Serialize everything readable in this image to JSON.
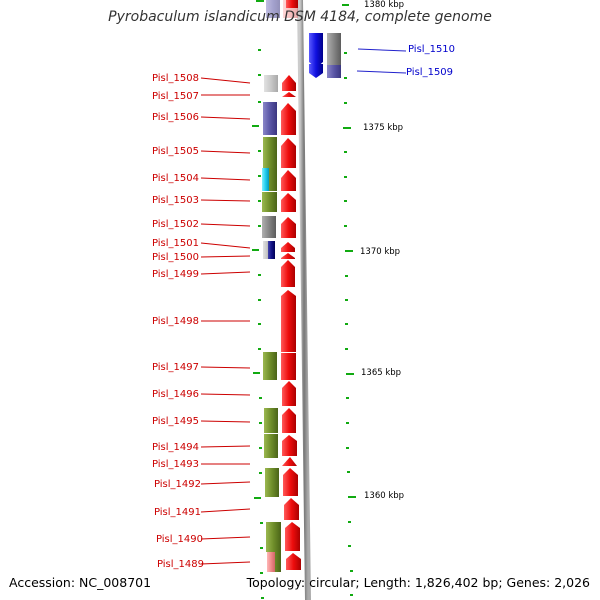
{
  "title": "Pyrobaculum islandicum DSM 4184, complete genome",
  "footer": {
    "accession": "Accession: NC_008701",
    "topology": "Topology: circular; Length: 1,826,402 bp; Genes: 2,026"
  },
  "colors": {
    "forward_gene": "#ee1111",
    "reverse_gene": "#1111dd",
    "forward_label": "#cc0000",
    "reverse_label": "#0000cc",
    "tick": "#11aa11",
    "backbone": "#888888"
  },
  "coordinate_labels": [
    "1380 kbp",
    "1375 kbp",
    "1370 kbp",
    "1365 kbp",
    "1360 kbp"
  ],
  "genes": [
    {
      "label": "Pisl_1510",
      "strand": "reverse"
    },
    {
      "label": "Pisl_1509",
      "strand": "reverse"
    },
    {
      "label": "Pisl_1508",
      "strand": "forward"
    },
    {
      "label": "Pisl_1507",
      "strand": "forward"
    },
    {
      "label": "Pisl_1506",
      "strand": "forward"
    },
    {
      "label": "Pisl_1505",
      "strand": "forward"
    },
    {
      "label": "Pisl_1504",
      "strand": "forward"
    },
    {
      "label": "Pisl_1503",
      "strand": "forward"
    },
    {
      "label": "Pisl_1502",
      "strand": "forward"
    },
    {
      "label": "Pisl_1501",
      "strand": "forward"
    },
    {
      "label": "Pisl_1500",
      "strand": "forward"
    },
    {
      "label": "Pisl_1499",
      "strand": "forward"
    },
    {
      "label": "Pisl_1498",
      "strand": "forward"
    },
    {
      "label": "Pisl_1497",
      "strand": "forward"
    },
    {
      "label": "Pisl_1496",
      "strand": "forward"
    },
    {
      "label": "Pisl_1495",
      "strand": "forward"
    },
    {
      "label": "Pisl_1494",
      "strand": "forward"
    },
    {
      "label": "Pisl_1493",
      "strand": "forward"
    },
    {
      "label": "Pisl_1492",
      "strand": "forward"
    },
    {
      "label": "Pisl_1491",
      "strand": "forward"
    },
    {
      "label": "Pisl_1490",
      "strand": "forward"
    },
    {
      "label": "Pisl_1489",
      "strand": "forward"
    }
  ]
}
